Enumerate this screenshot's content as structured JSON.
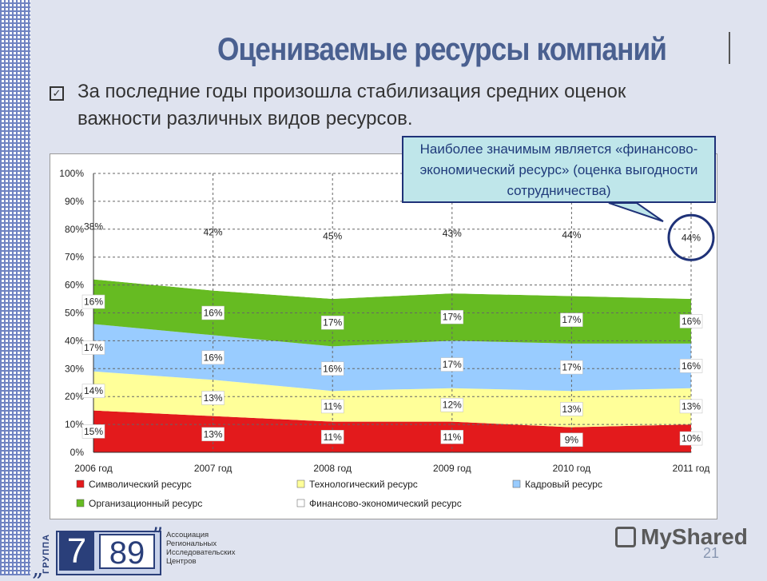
{
  "slide": {
    "title": "Оцениваемые ресурсы компаний",
    "bullet": "За последние годы произошла стабилизация средних оценок важности различных видов ресурсов.",
    "callout": "Наиболее значимым является «финансово-экономический ресурс» (оценка выгодности сотрудничества)",
    "page_number": "21",
    "watermark": "MyShared"
  },
  "logo": {
    "vertical": "ГРУППА",
    "num1": "7",
    "num2": "89",
    "quote_open": "„",
    "quote_close": "”",
    "text_lines": [
      "Ассоциация",
      "Региональных",
      "Исследовательских",
      "Центров"
    ]
  },
  "chart_data": {
    "type": "area",
    "stacked": true,
    "x": [
      "2006 год",
      "2007 год",
      "2008 год",
      "2009 год",
      "2010 год",
      "2011 год"
    ],
    "ylim": [
      0,
      100
    ],
    "yticks": [
      "0%",
      "10%",
      "20%",
      "30%",
      "40%",
      "50%",
      "60%",
      "70%",
      "80%",
      "90%",
      "100%"
    ],
    "grid": true,
    "legend_position": "bottom",
    "series": [
      {
        "name": "Символический ресурс",
        "color": "#e31a1c",
        "values": [
          15,
          13,
          11,
          11,
          9,
          10
        ]
      },
      {
        "name": "Технологический ресурс",
        "color": "#ffff99",
        "values": [
          14,
          13,
          11,
          12,
          13,
          13
        ]
      },
      {
        "name": "Кадровый ресурс",
        "color": "#99ccff",
        "values": [
          17,
          16,
          16,
          17,
          17,
          16
        ]
      },
      {
        "name": "Организационный ресурс",
        "color": "#66bb22",
        "values": [
          16,
          16,
          17,
          17,
          17,
          16
        ]
      },
      {
        "name": "Финансово-экономический ресурс",
        "color": "#ffffff",
        "values": [
          38,
          42,
          45,
          43,
          44,
          44
        ]
      }
    ]
  }
}
